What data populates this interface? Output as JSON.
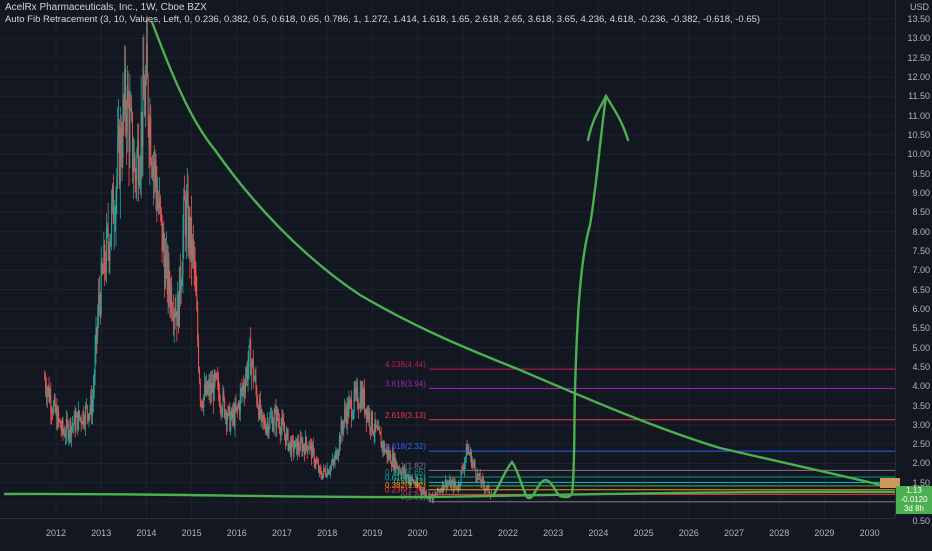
{
  "legend": {
    "title": "AcelRx Pharmaceuticals, Inc., 1W, Cboe BZX",
    "indicator": "Auto Fib Retracement (3, 10, Values, Left, 0, 0.236, 0.382, 0.5, 0.618, 0.65, 0.786, 1, 1.272, 1.414, 1.618, 1.65, 2.618, 2.65, 3.618, 3.65, 4.236, 4.618, -0.236, -0.382, -0.618, -0.65)"
  },
  "price_scale": {
    "currency": "USD",
    "labels": [
      "13.50",
      "13.00",
      "12.50",
      "12.00",
      "11.50",
      "11.00",
      "10.50",
      "10.00",
      "9.50",
      "9.00",
      "8.50",
      "8.00",
      "7.50",
      "7.00",
      "6.50",
      "6.00",
      "5.50",
      "5.00",
      "4.50",
      "4.00",
      "3.50",
      "3.00",
      "2.50",
      "2.00",
      "1.50",
      "1.00",
      "0.50"
    ]
  },
  "time_scale": {
    "labels": [
      "2012",
      "2013",
      "2014",
      "2015",
      "2016",
      "2017",
      "2018",
      "2019",
      "2020",
      "2021",
      "2022",
      "2023",
      "2024",
      "2025",
      "2026",
      "2027",
      "2028",
      "2029",
      "2030"
    ]
  },
  "fib_levels": [
    {
      "label": "4.236(4.44)",
      "color": "#c2185b"
    },
    {
      "label": "3.618(3.94)",
      "color": "#9c27b0"
    },
    {
      "label": "2.618(3.13)",
      "color": "#f23645"
    },
    {
      "label": "1.618(2.32)",
      "color": "#2962ff"
    },
    {
      "label": "1(1.82)",
      "color": "#787b86"
    },
    {
      "label": "0.786(1.65)",
      "color": "#089981"
    },
    {
      "label": "0.618(1.51)",
      "color": "#00bcd4"
    },
    {
      "label": "0.5(1.42)",
      "color": "#4caf50"
    },
    {
      "label": "0.382(1.32)",
      "color": "#ff9800"
    },
    {
      "label": "0.236(1.20)",
      "color": "#f23645"
    },
    {
      "label": "0(1.01)",
      "color": "#787b86"
    }
  ],
  "badges": {
    "price": "1.13",
    "change": "-0.0120",
    "countdown": "3d 8h"
  },
  "colors": {
    "background": "#131722",
    "up": "#26a69a",
    "down": "#ef5350",
    "drawing": "#4caf50"
  }
}
